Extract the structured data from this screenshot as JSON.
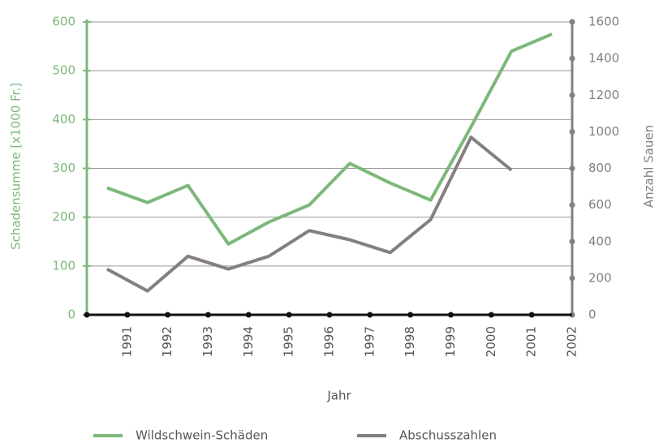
{
  "chart_data": {
    "type": "line",
    "categories": [
      "1991",
      "1992",
      "1993",
      "1994",
      "1995",
      "1996",
      "1997",
      "1998",
      "1999",
      "2000",
      "2001",
      "2002"
    ],
    "series": [
      {
        "name": "Wildschwein-Schäden",
        "color": "#7cb87a",
        "values": [
          260,
          230,
          265,
          145,
          190,
          225,
          310,
          270,
          235,
          385,
          540,
          575
        ]
      },
      {
        "name": "Abschusszahlen",
        "color": "#857f7f",
        "axis": "y2",
        "values": [
          250,
          130,
          320,
          250,
          320,
          460,
          410,
          340,
          520,
          970,
          790,
          null
        ]
      }
    ],
    "xlabel": "Jahr",
    "ylabel": "Schadensumme [x1000 Fr.]",
    "y2label": "Anzahl Sauen",
    "ylim": [
      0,
      600
    ],
    "yticks": [
      0,
      100,
      200,
      300,
      400,
      500,
      600
    ],
    "y2lim": [
      0,
      1600
    ],
    "y2ticks": [
      0,
      200,
      400,
      600,
      800,
      1000,
      1200,
      1400,
      1600
    ],
    "grid": true
  }
}
